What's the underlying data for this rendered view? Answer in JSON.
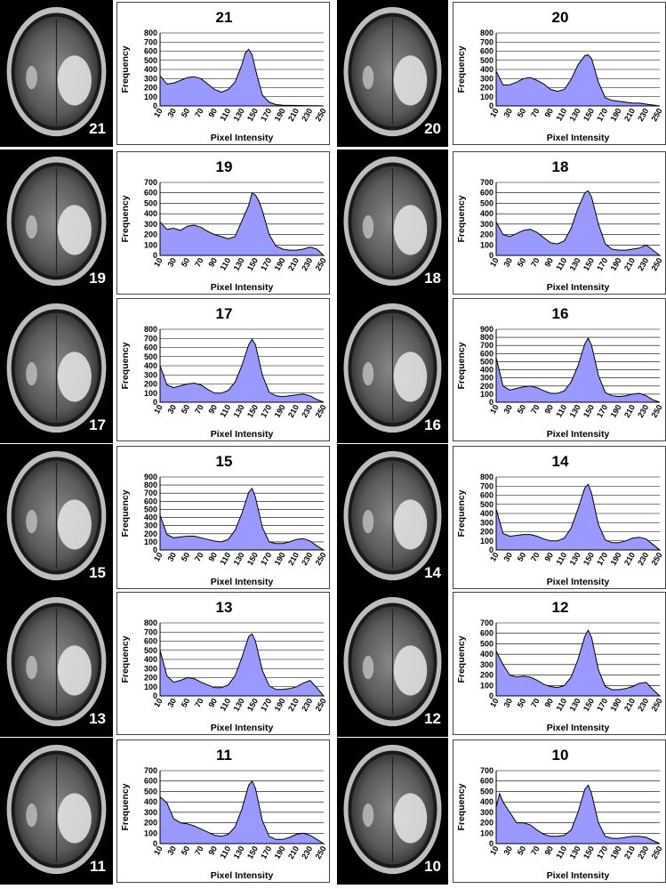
{
  "xlabel": "Pixel Intensity",
  "ylabel": "Frequency",
  "x_ticks": [
    "10",
    "30",
    "50",
    "70",
    "90",
    "110",
    "130",
    "150",
    "170",
    "190",
    "210",
    "230",
    "250"
  ],
  "fill_color": "#9999ff",
  "line_color": "#000000",
  "chart_data": [
    {
      "type": "area",
      "title": "21",
      "slice_label": "21",
      "ylim": [
        0,
        800
      ],
      "y_ticks": [
        0,
        100,
        200,
        300,
        400,
        500,
        600,
        700,
        800
      ],
      "x": [
        10,
        20,
        30,
        40,
        50,
        60,
        70,
        80,
        90,
        100,
        110,
        120,
        130,
        135,
        140,
        145,
        150,
        160,
        170,
        180,
        190,
        200,
        210,
        220,
        230,
        240,
        250
      ],
      "y": [
        330,
        240,
        250,
        280,
        310,
        320,
        300,
        240,
        180,
        150,
        180,
        260,
        450,
        580,
        620,
        560,
        400,
        120,
        40,
        15,
        8,
        6,
        5,
        4,
        3,
        2,
        0
      ]
    },
    {
      "type": "area",
      "title": "20",
      "slice_label": "20",
      "ylim": [
        0,
        800
      ],
      "y_ticks": [
        0,
        100,
        200,
        300,
        400,
        500,
        600,
        700,
        800
      ],
      "x": [
        10,
        20,
        30,
        40,
        50,
        60,
        70,
        80,
        90,
        100,
        110,
        120,
        130,
        140,
        145,
        150,
        160,
        170,
        180,
        190,
        200,
        210,
        220,
        230,
        240,
        250
      ],
      "y": [
        380,
        230,
        230,
        260,
        300,
        310,
        280,
        240,
        180,
        160,
        180,
        290,
        450,
        550,
        560,
        520,
        260,
        90,
        60,
        50,
        40,
        30,
        30,
        20,
        10,
        0
      ]
    },
    {
      "type": "area",
      "title": "19",
      "slice_label": "19",
      "ylim": [
        0,
        700
      ],
      "y_ticks": [
        0,
        100,
        200,
        300,
        400,
        500,
        600,
        700
      ],
      "x": [
        10,
        20,
        30,
        40,
        50,
        60,
        70,
        80,
        90,
        100,
        110,
        120,
        130,
        140,
        145,
        150,
        155,
        160,
        170,
        180,
        190,
        200,
        210,
        220,
        230,
        240,
        250
      ],
      "y": [
        320,
        250,
        260,
        240,
        280,
        290,
        270,
        230,
        200,
        180,
        160,
        180,
        330,
        480,
        600,
        580,
        520,
        430,
        200,
        90,
        60,
        50,
        50,
        60,
        80,
        60,
        0
      ]
    },
    {
      "type": "area",
      "title": "18",
      "slice_label": "18",
      "ylim": [
        0,
        700
      ],
      "y_ticks": [
        0,
        100,
        200,
        300,
        400,
        500,
        600,
        700
      ],
      "x": [
        10,
        20,
        30,
        40,
        50,
        60,
        70,
        80,
        90,
        100,
        110,
        120,
        130,
        140,
        145,
        150,
        160,
        170,
        180,
        190,
        200,
        210,
        220,
        230,
        240,
        250
      ],
      "y": [
        320,
        200,
        180,
        210,
        240,
        250,
        220,
        170,
        120,
        110,
        140,
        260,
        450,
        600,
        620,
        560,
        300,
        110,
        60,
        50,
        50,
        60,
        70,
        100,
        50,
        0
      ]
    },
    {
      "type": "area",
      "title": "17",
      "slice_label": "17",
      "ylim": [
        0,
        800
      ],
      "y_ticks": [
        0,
        100,
        200,
        300,
        400,
        500,
        600,
        700,
        800
      ],
      "x": [
        10,
        20,
        30,
        40,
        50,
        60,
        70,
        80,
        90,
        100,
        110,
        120,
        130,
        140,
        145,
        150,
        160,
        170,
        180,
        190,
        200,
        210,
        220,
        230,
        240,
        250
      ],
      "y": [
        400,
        190,
        160,
        180,
        200,
        210,
        190,
        140,
        100,
        100,
        130,
        220,
        400,
        630,
        690,
        630,
        300,
        110,
        70,
        60,
        70,
        80,
        90,
        70,
        30,
        0
      ]
    },
    {
      "type": "area",
      "title": "16",
      "slice_label": "16",
      "ylim": [
        0,
        900
      ],
      "y_ticks": [
        0,
        100,
        200,
        300,
        400,
        500,
        600,
        700,
        800,
        900
      ],
      "x": [
        10,
        20,
        30,
        40,
        50,
        60,
        70,
        80,
        90,
        100,
        110,
        120,
        130,
        140,
        145,
        150,
        160,
        170,
        180,
        190,
        200,
        210,
        220,
        230,
        240,
        250
      ],
      "y": [
        550,
        200,
        150,
        170,
        190,
        200,
        180,
        140,
        110,
        110,
        140,
        250,
        450,
        720,
        790,
        700,
        330,
        120,
        80,
        70,
        80,
        100,
        110,
        80,
        30,
        0
      ]
    },
    {
      "type": "area",
      "title": "15",
      "slice_label": "15",
      "ylim": [
        0,
        900
      ],
      "y_ticks": [
        0,
        100,
        200,
        300,
        400,
        500,
        600,
        700,
        800,
        900
      ],
      "x": [
        10,
        20,
        30,
        40,
        50,
        60,
        70,
        80,
        90,
        100,
        110,
        120,
        130,
        140,
        145,
        150,
        160,
        170,
        180,
        190,
        200,
        210,
        220,
        230,
        240,
        250
      ],
      "y": [
        430,
        190,
        150,
        160,
        170,
        170,
        150,
        130,
        110,
        100,
        130,
        240,
        450,
        710,
        760,
        650,
        280,
        100,
        80,
        80,
        100,
        130,
        140,
        110,
        50,
        0
      ]
    },
    {
      "type": "area",
      "title": "14",
      "slice_label": "14",
      "ylim": [
        0,
        800
      ],
      "y_ticks": [
        0,
        100,
        200,
        300,
        400,
        500,
        600,
        700,
        800
      ],
      "x": [
        10,
        20,
        30,
        40,
        50,
        60,
        70,
        80,
        90,
        100,
        110,
        120,
        130,
        140,
        145,
        150,
        160,
        170,
        180,
        190,
        200,
        210,
        220,
        230,
        240,
        250
      ],
      "y": [
        450,
        180,
        150,
        160,
        170,
        170,
        150,
        120,
        100,
        100,
        130,
        240,
        450,
        680,
        720,
        620,
        280,
        110,
        80,
        80,
        100,
        130,
        140,
        120,
        60,
        0
      ]
    },
    {
      "type": "area",
      "title": "13",
      "slice_label": "13",
      "ylim": [
        0,
        800
      ],
      "y_ticks": [
        0,
        100,
        200,
        300,
        400,
        500,
        600,
        700,
        800
      ],
      "x": [
        10,
        20,
        30,
        40,
        50,
        60,
        70,
        80,
        90,
        100,
        110,
        120,
        130,
        140,
        145,
        150,
        160,
        170,
        180,
        190,
        200,
        210,
        220,
        230,
        240,
        250
      ],
      "y": [
        500,
        220,
        150,
        170,
        200,
        190,
        150,
        120,
        90,
        90,
        120,
        220,
        420,
        650,
        680,
        600,
        280,
        110,
        70,
        70,
        80,
        100,
        140,
        170,
        90,
        0
      ]
    },
    {
      "type": "area",
      "title": "12",
      "slice_label": "12",
      "ylim": [
        0,
        700
      ],
      "y_ticks": [
        0,
        100,
        200,
        300,
        400,
        500,
        600,
        700
      ],
      "x": [
        10,
        20,
        30,
        40,
        50,
        60,
        70,
        80,
        90,
        100,
        110,
        120,
        130,
        140,
        145,
        150,
        160,
        170,
        180,
        190,
        200,
        210,
        220,
        230,
        240,
        250
      ],
      "y": [
        430,
        300,
        200,
        180,
        190,
        180,
        150,
        110,
        90,
        80,
        100,
        180,
        350,
        570,
        630,
        560,
        250,
        90,
        60,
        60,
        70,
        90,
        120,
        130,
        60,
        0
      ]
    },
    {
      "type": "area",
      "title": "11",
      "slice_label": "11",
      "ylim": [
        0,
        700
      ],
      "y_ticks": [
        0,
        100,
        200,
        300,
        400,
        500,
        600,
        700
      ],
      "x": [
        10,
        20,
        30,
        40,
        50,
        60,
        70,
        80,
        90,
        100,
        110,
        120,
        130,
        140,
        145,
        150,
        160,
        170,
        180,
        190,
        200,
        210,
        220,
        230,
        240,
        250
      ],
      "y": [
        450,
        390,
        240,
        200,
        190,
        170,
        140,
        110,
        80,
        70,
        90,
        160,
        330,
        560,
        600,
        530,
        220,
        70,
        40,
        40,
        60,
        90,
        100,
        80,
        40,
        0
      ]
    },
    {
      "type": "area",
      "title": "10",
      "slice_label": "10",
      "ylim": [
        0,
        700
      ],
      "y_ticks": [
        0,
        100,
        200,
        300,
        400,
        500,
        600,
        700
      ],
      "x": [
        10,
        15,
        20,
        30,
        40,
        50,
        60,
        70,
        80,
        90,
        100,
        110,
        120,
        130,
        140,
        145,
        150,
        160,
        170,
        180,
        190,
        200,
        210,
        220,
        230,
        240,
        250
      ],
      "y": [
        350,
        480,
        400,
        300,
        200,
        200,
        180,
        130,
        90,
        70,
        70,
        80,
        130,
        300,
        520,
        560,
        480,
        200,
        70,
        50,
        50,
        60,
        70,
        70,
        60,
        30,
        0
      ]
    }
  ]
}
